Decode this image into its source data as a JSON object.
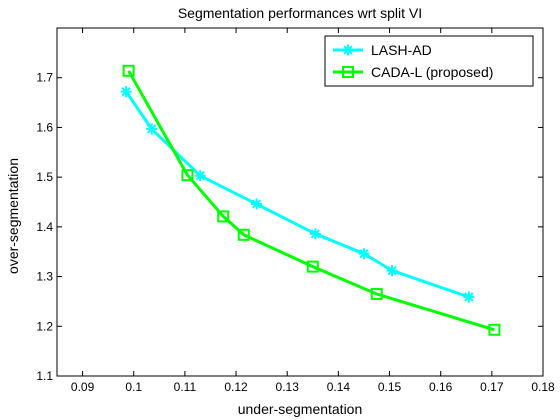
{
  "chart_data": {
    "type": "line",
    "title": "Segmentation performances wrt split VI",
    "xlabel": "under-segmentation",
    "ylabel": "over-segmentation",
    "xlim": [
      0.085,
      0.18
    ],
    "ylim": [
      1.1,
      1.8
    ],
    "xticks": [
      "0.09",
      "0.1",
      "0.11",
      "0.12",
      "0.13",
      "0.14",
      "0.15",
      "0.16",
      "0.17",
      "0.18"
    ],
    "yticks": [
      "1.1",
      "1.2",
      "1.3",
      "1.4",
      "1.5",
      "1.6",
      "1.7"
    ],
    "legend_position": "top-right",
    "grid": false,
    "series": [
      {
        "name": "LASH-AD",
        "color": "#00ffff",
        "marker": "asterisk",
        "points": [
          [
            0.0985,
            1.672
          ],
          [
            0.1035,
            1.597
          ],
          [
            0.113,
            1.503
          ],
          [
            0.124,
            1.446
          ],
          [
            0.1355,
            1.386
          ],
          [
            0.145,
            1.346
          ],
          [
            0.1505,
            1.312
          ],
          [
            0.1655,
            1.259
          ]
        ]
      },
      {
        "name": "CADA-L (proposed)",
        "color": "#00ff00",
        "marker": "square",
        "points": [
          [
            0.099,
            1.714
          ],
          [
            0.1105,
            1.504
          ],
          [
            0.1175,
            1.421
          ],
          [
            0.1215,
            1.384
          ],
          [
            0.135,
            1.32
          ],
          [
            0.1475,
            1.265
          ],
          [
            0.1705,
            1.193
          ]
        ]
      }
    ]
  }
}
